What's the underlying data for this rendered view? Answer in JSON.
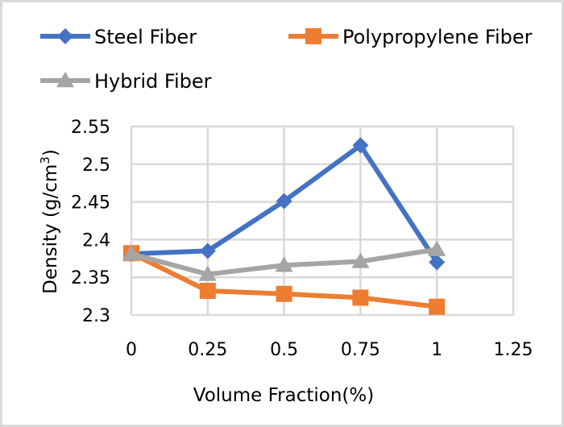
{
  "chart_data": {
    "type": "line",
    "title": "",
    "xlabel": "Volume Fraction(%)",
    "ylabel_main": "Density (g/cm",
    "ylabel_sup": "3",
    "ylabel_close": ")",
    "xlim": [
      0,
      1.25
    ],
    "ylim": [
      2.3,
      2.55
    ],
    "x_ticks": [
      0,
      0.25,
      0.5,
      0.75,
      1,
      1.25
    ],
    "x_tick_labels": [
      "0",
      "0.25",
      "0.5",
      "0.75",
      "1",
      "1.25"
    ],
    "y_ticks": [
      2.3,
      2.35,
      2.4,
      2.45,
      2.5,
      2.55
    ],
    "y_tick_labels": [
      "2.3",
      "2.35",
      "2.4",
      "2.45",
      "2.5",
      "2.55"
    ],
    "grid": true,
    "legend_position": "top",
    "x": [
      0,
      0.25,
      0.5,
      0.75,
      1
    ],
    "series": [
      {
        "name": "Steel Fiber",
        "color": "#4472c4",
        "marker": "diamond",
        "values": [
          2.381,
          2.385,
          2.451,
          2.525,
          2.37
        ]
      },
      {
        "name": "Polypropylene Fiber",
        "color": "#ed7d31",
        "marker": "square",
        "values": [
          2.382,
          2.332,
          2.328,
          2.323,
          2.311
        ]
      },
      {
        "name": "Hybrid Fiber",
        "color": "#a5a5a5",
        "marker": "triangle",
        "values": [
          2.381,
          2.354,
          2.366,
          2.371,
          2.387
        ]
      }
    ]
  }
}
